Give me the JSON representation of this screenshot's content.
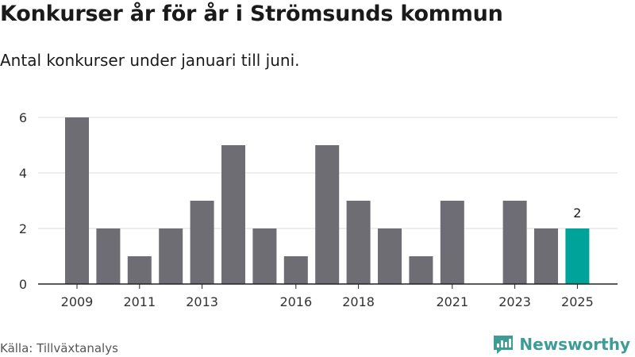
{
  "header": {
    "title": "Konkurser år för år i Strömsunds kommun",
    "subtitle": "Antal konkurser under januari till juni."
  },
  "footer": {
    "source": "Källa: Tillväxtanalys",
    "brand": "Newsworthy"
  },
  "colors": {
    "bar": "#6e6d73",
    "highlight": "#00a39a",
    "grid": "#dcdcdc",
    "brand": "#3e9c96"
  },
  "chart_data": {
    "type": "bar",
    "categories": [
      "2009",
      "2010",
      "2011",
      "2012",
      "2013",
      "2014",
      "2015",
      "2016",
      "2017",
      "2018",
      "2019",
      "2020",
      "2021",
      "2022",
      "2023",
      "2024",
      "2025"
    ],
    "values": [
      6,
      2,
      1,
      2,
      3,
      5,
      2,
      1,
      5,
      3,
      2,
      1,
      3,
      0,
      3,
      2,
      2
    ],
    "x_tick_labels": [
      "2009",
      "2011",
      "2013",
      "2016",
      "2018",
      "2021",
      "2023",
      "2025"
    ],
    "y_ticks": [
      0,
      2,
      4,
      6
    ],
    "ylim": [
      0,
      6
    ],
    "highlight_category": "2025",
    "data_labels": [
      {
        "category": "2025",
        "text": "2"
      }
    ],
    "grid": true,
    "legend": "none"
  }
}
